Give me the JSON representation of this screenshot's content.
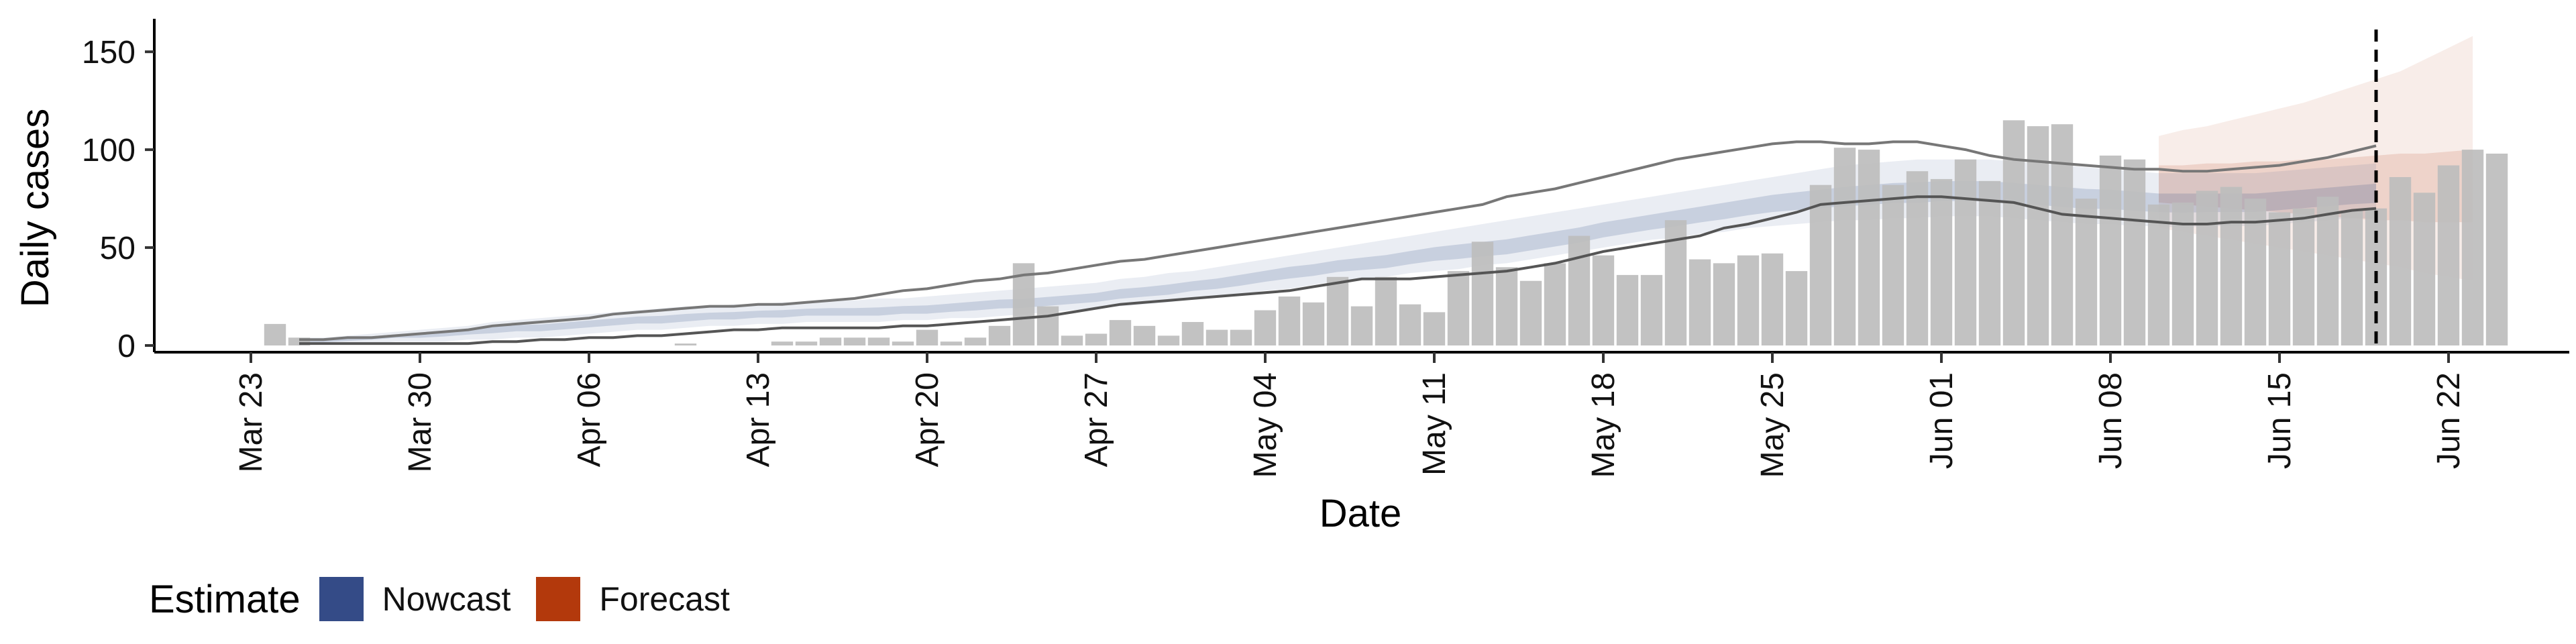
{
  "chart_data": {
    "type": "bar",
    "xlabel": "Date",
    "ylabel": "Daily cases",
    "ylim": [
      0,
      160
    ],
    "yticks": [
      0,
      50,
      100,
      150
    ],
    "xlim": [
      "2020-03-19",
      "2020-06-27"
    ],
    "xticks": [
      {
        "date": "2020-03-23",
        "label": "Mar 23"
      },
      {
        "date": "2020-03-30",
        "label": "Mar 30"
      },
      {
        "date": "2020-04-06",
        "label": "Apr 06"
      },
      {
        "date": "2020-04-13",
        "label": "Apr 13"
      },
      {
        "date": "2020-04-20",
        "label": "Apr 20"
      },
      {
        "date": "2020-04-27",
        "label": "Apr 27"
      },
      {
        "date": "2020-05-04",
        "label": "May 04"
      },
      {
        "date": "2020-05-11",
        "label": "May 11"
      },
      {
        "date": "2020-05-18",
        "label": "May 18"
      },
      {
        "date": "2020-05-25",
        "label": "May 25"
      },
      {
        "date": "2020-06-01",
        "label": "Jun 01"
      },
      {
        "date": "2020-06-08",
        "label": "Jun 08"
      },
      {
        "date": "2020-06-15",
        "label": "Jun 15"
      },
      {
        "date": "2020-06-22",
        "label": "Jun 22"
      }
    ],
    "reference_line_date": "2020-06-19",
    "legend": {
      "title": "Estimate",
      "placement": "bottom-left",
      "entries": [
        {
          "label": "Nowcast",
          "color": "#344b87"
        },
        {
          "label": "Forecast",
          "color": "#b3390c"
        }
      ]
    },
    "observed": {
      "start_date": "2020-03-24",
      "values": [
        11,
        4,
        0,
        0,
        0,
        0,
        0,
        0,
        0,
        0,
        0,
        0,
        0,
        0,
        0,
        0,
        0,
        1,
        0,
        0,
        0,
        2,
        2,
        4,
        4,
        4,
        2,
        8,
        2,
        4,
        10,
        42,
        20,
        5,
        6,
        13,
        10,
        5,
        12,
        8,
        8,
        18,
        25,
        22,
        35,
        20,
        35,
        21,
        17,
        38,
        53,
        40,
        33,
        42,
        56,
        46,
        36,
        36,
        64,
        44,
        42,
        46,
        47,
        38,
        82,
        101,
        100,
        82,
        89,
        85,
        95,
        84,
        115,
        112,
        113,
        75,
        97,
        95,
        72,
        73,
        79,
        81,
        75,
        68,
        70,
        76,
        69,
        70,
        86,
        78,
        92,
        100,
        98
      ]
    },
    "nowcast": {
      "start_date": "2020-03-25",
      "median": [
        2,
        2,
        3,
        4,
        5,
        5,
        6,
        7,
        8,
        9,
        9,
        10,
        11,
        12,
        13,
        13,
        14,
        15,
        15,
        16,
        16,
        17,
        17,
        17,
        17,
        18,
        18,
        19,
        20,
        21,
        21,
        22,
        23,
        24,
        26,
        27,
        28,
        30,
        31,
        33,
        35,
        37,
        38,
        40,
        41,
        42,
        44,
        46,
        47,
        48,
        49,
        51,
        53,
        55,
        58,
        60,
        62,
        64,
        66,
        68,
        70,
        72,
        73,
        74,
        75,
        76,
        77,
        77,
        78,
        78,
        78,
        77,
        76,
        75,
        74,
        74,
        73,
        72,
        72,
        72,
        72,
        72,
        73,
        74,
        75,
        76,
        77
      ],
      "lower90": [
        0,
        1,
        1,
        1,
        2,
        2,
        2,
        3,
        3,
        4,
        4,
        5,
        6,
        7,
        8,
        8,
        9,
        10,
        10,
        11,
        11,
        12,
        12,
        12,
        12,
        13,
        13,
        14,
        14,
        15,
        16,
        17,
        18,
        19,
        20,
        21,
        22,
        24,
        25,
        26,
        28,
        29,
        31,
        33,
        34,
        35,
        37,
        38,
        39,
        41,
        42,
        44,
        46,
        48,
        50,
        52,
        54,
        55,
        57,
        58,
        60,
        61,
        62,
        63,
        64,
        64,
        65,
        65,
        66,
        66,
        66,
        65,
        64,
        63,
        62,
        62,
        61,
        61,
        60,
        61,
        61,
        61,
        62,
        63,
        64,
        65,
        65
      ],
      "upper90": [
        4,
        4,
        5,
        6,
        7,
        8,
        9,
        10,
        12,
        13,
        14,
        15,
        16,
        17,
        18,
        19,
        20,
        20,
        21,
        21,
        22,
        22,
        23,
        23,
        24,
        24,
        25,
        26,
        27,
        28,
        29,
        30,
        31,
        32,
        34,
        35,
        37,
        38,
        40,
        42,
        44,
        46,
        48,
        50,
        52,
        54,
        56,
        58,
        60,
        62,
        64,
        66,
        68,
        70,
        72,
        74,
        76,
        78,
        80,
        82,
        84,
        86,
        88,
        90,
        92,
        93,
        94,
        95,
        95,
        95,
        95,
        94,
        93,
        92,
        91,
        90,
        89,
        88,
        88,
        88,
        88,
        88,
        89,
        90,
        91,
        92,
        93
      ],
      "lower_bound": [
        1,
        1,
        1,
        1,
        1,
        1,
        1,
        1,
        2,
        2,
        3,
        3,
        4,
        4,
        5,
        5,
        6,
        7,
        8,
        8,
        9,
        9,
        9,
        9,
        9,
        10,
        10,
        11,
        12,
        13,
        14,
        15,
        17,
        19,
        21,
        22,
        23,
        24,
        25,
        26,
        27,
        28,
        30,
        32,
        34,
        34,
        34,
        35,
        36,
        37,
        38,
        40,
        42,
        45,
        48,
        50,
        52,
        54,
        56,
        60,
        62,
        65,
        68,
        72,
        73,
        74,
        75,
        76,
        76,
        75,
        74,
        73,
        70,
        67,
        66,
        65,
        64,
        63,
        62,
        62,
        63,
        63,
        64,
        65,
        67,
        69,
        70
      ],
      "upper_bound": [
        3,
        3,
        4,
        4,
        5,
        6,
        7,
        8,
        10,
        11,
        12,
        13,
        14,
        16,
        17,
        18,
        19,
        20,
        20,
        21,
        21,
        22,
        23,
        24,
        26,
        28,
        29,
        31,
        33,
        34,
        36,
        37,
        39,
        41,
        43,
        44,
        46,
        48,
        50,
        52,
        54,
        56,
        58,
        60,
        62,
        64,
        66,
        68,
        70,
        72,
        76,
        78,
        80,
        83,
        86,
        89,
        92,
        95,
        97,
        99,
        101,
        103,
        104,
        104,
        103,
        103,
        104,
        104,
        102,
        100,
        97,
        95,
        94,
        93,
        92,
        91,
        90,
        90,
        89,
        89,
        90,
        91,
        92,
        94,
        96,
        99,
        102
      ]
    },
    "forecast": {
      "start_date": "2020-06-10",
      "median": [
        82,
        83,
        83,
        84,
        84,
        85,
        84,
        84,
        83,
        83,
        83,
        82,
        82,
        82
      ],
      "lower50": [
        73,
        72,
        71,
        70,
        69,
        68,
        67,
        66,
        65,
        64,
        64,
        63,
        63,
        63
      ],
      "upper50": [
        92,
        92,
        93,
        93,
        94,
        94,
        95,
        95,
        96,
        97,
        98,
        98,
        99,
        100
      ],
      "lower90": [
        60,
        58,
        56,
        54,
        52,
        50,
        48,
        46,
        44,
        42,
        40,
        37,
        35,
        33
      ],
      "upper90": [
        107,
        110,
        112,
        115,
        118,
        121,
        124,
        128,
        132,
        136,
        140,
        146,
        152,
        158
      ]
    },
    "colors": {
      "bars": "#bdbdbd",
      "nowcast": "#344b87",
      "forecast": "#b3390c",
      "bound_line": "#555555"
    }
  },
  "legend_labels": {
    "title": "Estimate",
    "nowcast": "Nowcast",
    "forecast": "Forecast"
  }
}
